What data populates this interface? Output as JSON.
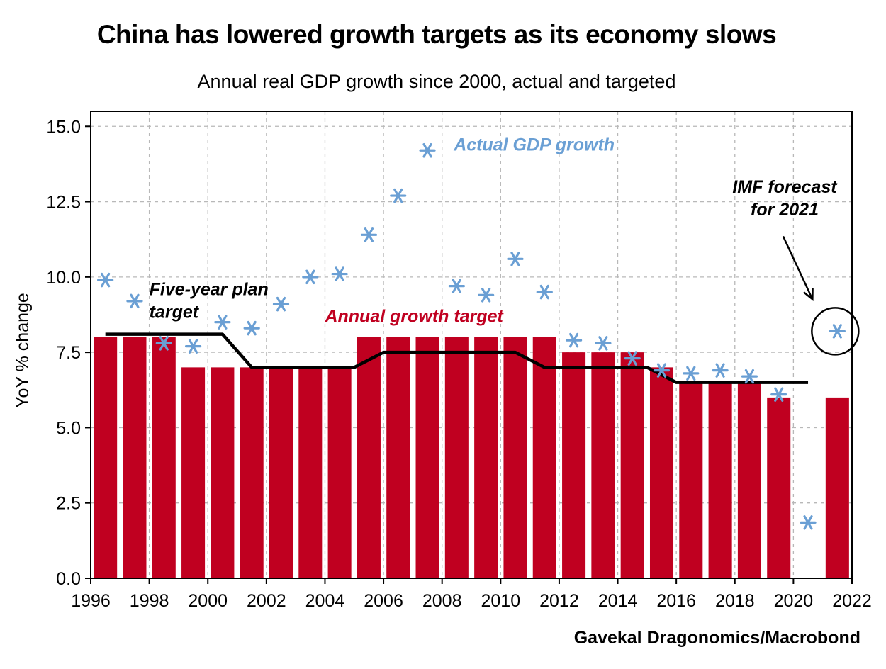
{
  "chart_data": {
    "type": "bar",
    "title": "China has lowered growth targets as its economy slows",
    "subtitle": "Annual real GDP growth since 2000, actual and targeted",
    "ylabel": "YoY % change",
    "xlabel": "",
    "source": "Gavekal Dragonomics/Macrobond",
    "xlim": [
      1996,
      2022
    ],
    "ylim": [
      0,
      15.5
    ],
    "x_ticks": [
      1996,
      1998,
      2000,
      2002,
      2004,
      2006,
      2008,
      2010,
      2012,
      2014,
      2016,
      2018,
      2020,
      2022
    ],
    "y_ticks": [
      0.0,
      2.5,
      5.0,
      7.5,
      10.0,
      12.5,
      15.0
    ],
    "y_tick_labels": [
      "0.0",
      "2.5",
      "5.0",
      "7.5",
      "10.0",
      "12.5",
      "15.0"
    ],
    "grid": true,
    "series": [
      {
        "name": "Annual growth target",
        "type": "bar",
        "color": "#c00020",
        "years": [
          1996,
          1997,
          1998,
          1999,
          2000,
          2001,
          2002,
          2003,
          2004,
          2005,
          2006,
          2007,
          2008,
          2009,
          2010,
          2011,
          2012,
          2013,
          2014,
          2015,
          2016,
          2017,
          2018,
          2019,
          2020,
          2021
        ],
        "values": [
          8.0,
          8.0,
          8.0,
          7.0,
          7.0,
          7.0,
          7.0,
          7.0,
          7.0,
          8.0,
          8.0,
          8.0,
          8.0,
          8.0,
          8.0,
          8.0,
          7.5,
          7.5,
          7.5,
          7.0,
          6.5,
          6.5,
          6.5,
          6.0,
          0.0,
          6.0
        ]
      },
      {
        "name": "Five-year plan target",
        "type": "line",
        "color": "#000000",
        "x": [
          1996.5,
          2000.5,
          2001.5,
          2005.0,
          2006.0,
          2010.5,
          2011.5,
          2015.0,
          2016.0,
          2020.5
        ],
        "values": [
          8.1,
          8.1,
          7.0,
          7.0,
          7.5,
          7.5,
          7.0,
          7.0,
          6.5,
          6.5
        ]
      },
      {
        "name": "Actual GDP growth",
        "type": "scatter",
        "color": "#6a9fd4",
        "years": [
          1996,
          1997,
          1998,
          1999,
          2000,
          2001,
          2002,
          2003,
          2004,
          2005,
          2006,
          2007,
          2008,
          2009,
          2010,
          2011,
          2012,
          2013,
          2014,
          2015,
          2016,
          2017,
          2018,
          2019,
          2020,
          2021
        ],
        "values": [
          9.9,
          9.2,
          7.8,
          7.7,
          8.5,
          8.3,
          9.1,
          10.0,
          10.1,
          11.4,
          12.7,
          14.2,
          9.7,
          9.4,
          10.6,
          9.5,
          7.9,
          7.8,
          7.3,
          6.9,
          6.8,
          6.9,
          6.7,
          6.1,
          1.85,
          8.2
        ]
      }
    ],
    "annotations": [
      {
        "text_lines": [
          "Actual GDP growth"
        ],
        "color": "#6a9fd4",
        "x": 2008.4,
        "y": 14.2
      },
      {
        "text_lines": [
          "Five-year plan",
          "target"
        ],
        "color": "#000000",
        "x": 1998.0,
        "y": 9.4
      },
      {
        "text_lines": [
          "Annual growth target"
        ],
        "color": "#c00020",
        "x": 2004.0,
        "y": 8.5
      },
      {
        "text_lines": [
          "IMF forecast",
          "for 2021"
        ],
        "color": "#000000",
        "x": 2019.7,
        "y": 12.8
      }
    ]
  }
}
